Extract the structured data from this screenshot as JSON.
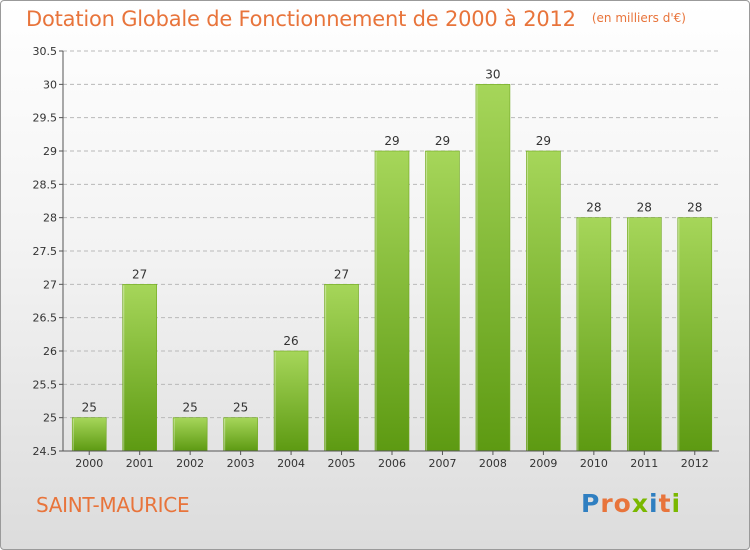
{
  "header": {
    "title": "Dotation Globale de Fonctionnement de 2000 à 2012",
    "unit": "(en milliers d'€)"
  },
  "footer": {
    "place": "SAINT-MAURICE",
    "logo_letters": [
      "P",
      "r",
      "o",
      "x",
      "i",
      "t",
      "i"
    ]
  },
  "colors": {
    "title": "#e8743b",
    "bar_top": "#a6d65a",
    "bar_bottom": "#5d9a12",
    "grid": "#b9b9b9",
    "axis": "#555555",
    "logo_letters": [
      "#2f7fc1",
      "#e8743b",
      "#e8743b",
      "#7ab800",
      "#2f7fc1",
      "#e8743b",
      "#7ab800"
    ]
  },
  "chart_data": {
    "type": "bar",
    "title": "Dotation Globale de Fonctionnement de 2000 à 2012",
    "subtitle": "(en milliers d'€)",
    "xlabel": "",
    "ylabel": "",
    "categories": [
      "2000",
      "2001",
      "2002",
      "2003",
      "2004",
      "2005",
      "2006",
      "2007",
      "2008",
      "2009",
      "2010",
      "2011",
      "2012"
    ],
    "values": [
      25,
      27,
      25,
      25,
      26,
      27,
      29,
      29,
      30,
      29,
      28,
      28,
      28
    ],
    "ylim": [
      24.5,
      30.5
    ],
    "yticks": [
      "24.5",
      "25",
      "25.5",
      "26",
      "26.5",
      "27",
      "27.5",
      "28",
      "28.5",
      "29",
      "29.5",
      "30",
      "30.5"
    ],
    "grid": true,
    "legend": "none"
  }
}
